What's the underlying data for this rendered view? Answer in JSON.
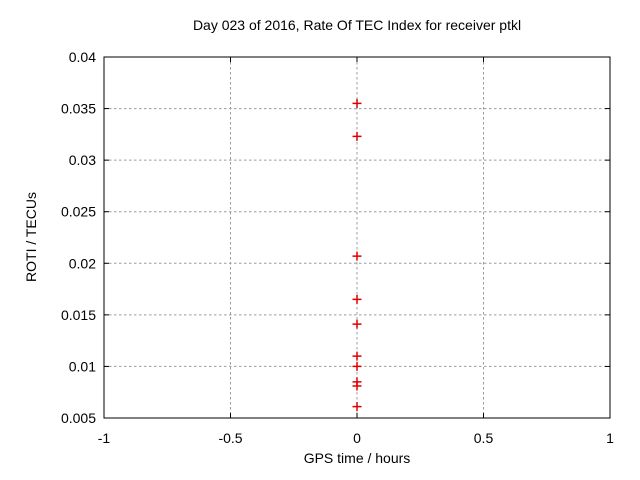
{
  "figure": {
    "background": "#ffffff"
  },
  "chart_data": {
    "type": "scatter",
    "title": "Day 023 of 2016, Rate Of TEC Index for receiver ptkl",
    "xlabel": "GPS time / hours",
    "ylabel": "ROTI / TECUs",
    "xlim": [
      -1,
      1
    ],
    "ylim": [
      0.005,
      0.04
    ],
    "xticks": {
      "values": [
        -1,
        -0.5,
        0,
        0.5,
        1
      ],
      "labels": [
        "-1",
        "-0.5",
        "0",
        "0.5",
        "1"
      ]
    },
    "yticks": {
      "values": [
        0.005,
        0.01,
        0.015,
        0.02,
        0.025,
        0.03,
        0.035,
        0.04
      ],
      "labels": [
        "0.005",
        "0.01",
        "0.015",
        "0.02",
        "0.025",
        "0.03",
        "0.035",
        "0.04"
      ]
    },
    "grid": true,
    "legend_position": "none",
    "series": [
      {
        "name": "ROTI",
        "marker": "plus",
        "color": "#e00000",
        "points": [
          {
            "x": 0,
            "y": 0.0355
          },
          {
            "x": 0,
            "y": 0.0323
          },
          {
            "x": 0,
            "y": 0.0207
          },
          {
            "x": 0,
            "y": 0.0165
          },
          {
            "x": 0,
            "y": 0.0141
          },
          {
            "x": 0,
            "y": 0.011
          },
          {
            "x": 0,
            "y": 0.01
          },
          {
            "x": 0,
            "y": 0.0085
          },
          {
            "x": 0,
            "y": 0.0081
          },
          {
            "x": 0,
            "y": 0.0061
          }
        ]
      }
    ],
    "colors": {
      "grid": "#9c9c9c",
      "axis": "#000000",
      "text": "#000000",
      "marker": "#e00000"
    }
  }
}
